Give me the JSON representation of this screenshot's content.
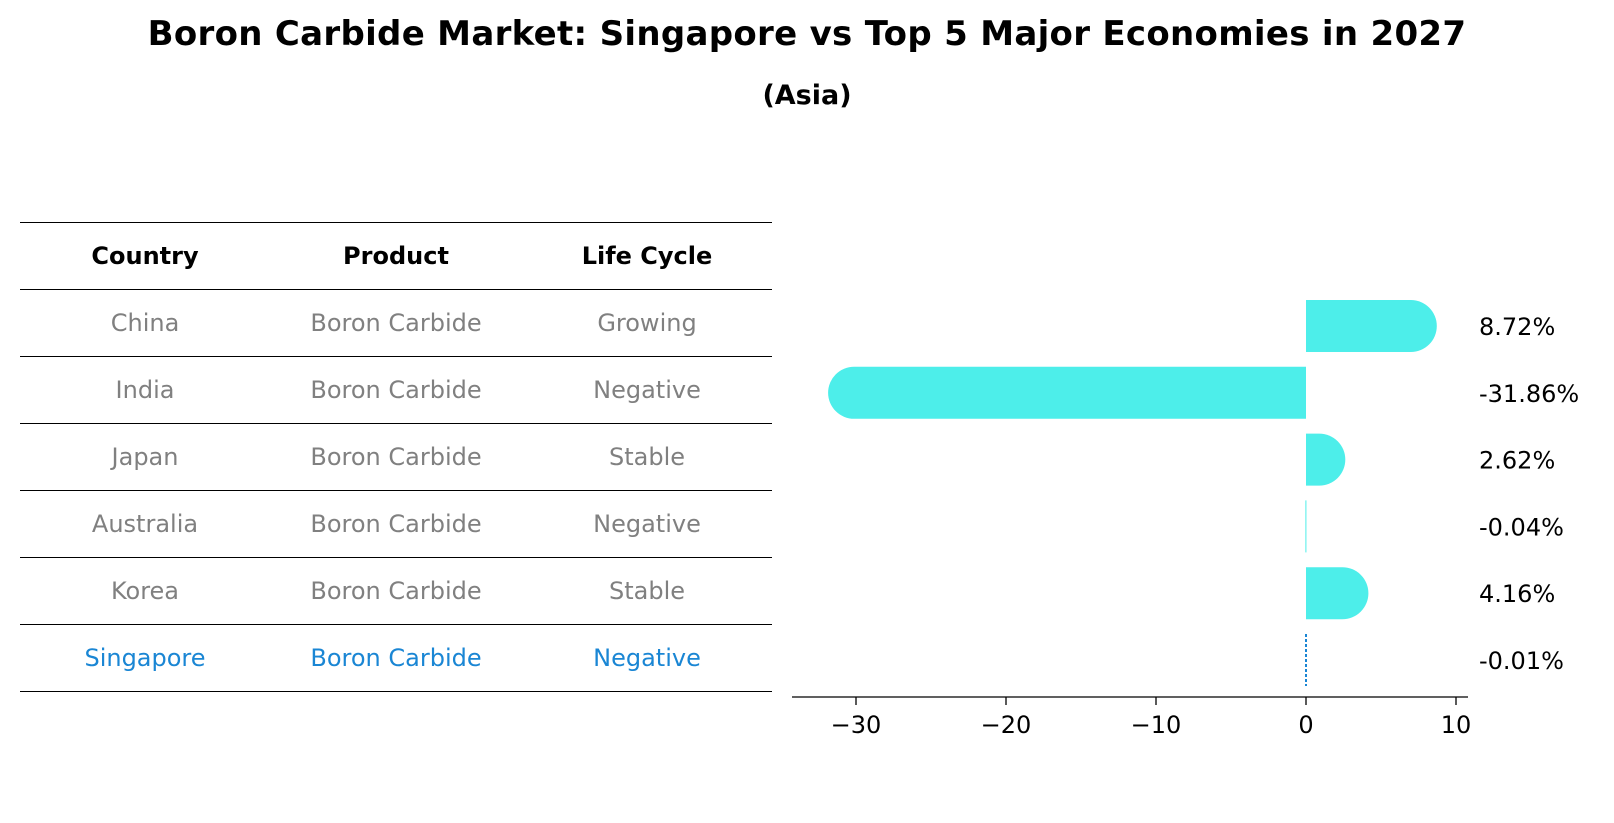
{
  "title": "Boron Carbide Market: Singapore vs Top 5 Major Economies in 2027",
  "subtitle": "(Asia)",
  "table": {
    "headers": [
      "Country",
      "Product",
      "Life Cycle"
    ],
    "rows": [
      [
        "China",
        "Boron Carbide",
        "Growing"
      ],
      [
        "India",
        "Boron Carbide",
        "Negative"
      ],
      [
        "Japan",
        "Boron Carbide",
        "Stable"
      ],
      [
        "Australia",
        "Boron Carbide",
        "Negative"
      ],
      [
        "Korea",
        "Boron Carbide",
        "Stable"
      ],
      [
        "Singapore",
        "Boron Carbide",
        "Negative"
      ]
    ],
    "highlight_row": 5
  },
  "colors": {
    "bar": "#4ded ea",
    "highlight": "#1a86d4",
    "muted": "#808080"
  },
  "chart_data": {
    "type": "bar",
    "orientation": "horizontal",
    "categories": [
      "China",
      "India",
      "Japan",
      "Australia",
      "Korea",
      "Singapore"
    ],
    "values": [
      8.72,
      -31.86,
      2.62,
      -0.04,
      4.16,
      -0.01
    ],
    "value_labels": [
      "8.72%",
      "-31.86%",
      "2.62%",
      "-0.04%",
      "4.16%",
      "-0.01%"
    ],
    "xlim": [
      -34,
      10.7
    ],
    "xticks": [
      -30,
      -20,
      -10,
      0,
      10
    ],
    "xtick_labels": [
      "−30",
      "−20",
      "−10",
      "0",
      "10"
    ],
    "highlight_category": "Singapore",
    "grid": false,
    "title": "",
    "xlabel": "",
    "ylabel": ""
  }
}
